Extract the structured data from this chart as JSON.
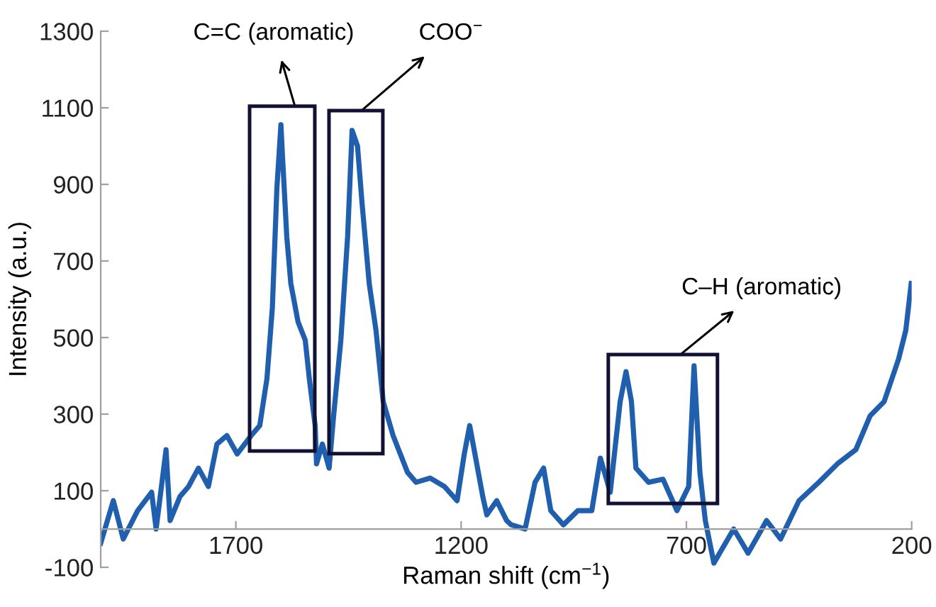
{
  "chart_data": {
    "type": "line",
    "xlabel": "Raman shift (cm$^{−1}$)",
    "ylabel": "Intensity (a.u.)",
    "xlim": [
      2000,
      200
    ],
    "xticks": [
      1700,
      1200,
      700,
      200
    ],
    "ylim": [
      -100,
      1300
    ],
    "yticks": [
      -100,
      100,
      300,
      500,
      700,
      900,
      1100,
      1300
    ],
    "grid": false,
    "marker": "none",
    "line_style": "solid",
    "series": [
      {
        "color": "#1f5fad",
        "x": [
          2000,
          1972,
          1950,
          1918,
          1887,
          1877,
          1855,
          1846,
          1824,
          1805,
          1783,
          1761,
          1742,
          1720,
          1697,
          1666,
          1647,
          1631,
          1619,
          1609,
          1600,
          1597,
          1587,
          1578,
          1562,
          1546,
          1537,
          1524,
          1521,
          1508,
          1493,
          1483,
          1467,
          1452,
          1442,
          1430,
          1420,
          1404,
          1389,
          1373,
          1351,
          1319,
          1300,
          1269,
          1237,
          1209,
          1193,
          1181,
          1152,
          1143,
          1121,
          1099,
          1089,
          1058,
          1036,
          1017,
          1001,
          973,
          941,
          910,
          891,
          869,
          847,
          834,
          822,
          812,
          784,
          752,
          721,
          695,
          683,
          670,
          658,
          639,
          595,
          563,
          522,
          491,
          450,
          406,
          365,
          324,
          292,
          261,
          229,
          213,
          201
        ],
        "values": [
          -37,
          74,
          -26,
          48,
          96,
          0,
          207,
          22,
          85,
          111,
          159,
          111,
          222,
          244,
          196,
          244,
          270,
          393,
          578,
          889,
          1056,
          985,
          763,
          641,
          541,
          493,
          393,
          270,
          170,
          222,
          159,
          296,
          493,
          763,
          1041,
          1000,
          852,
          641,
          519,
          333,
          244,
          148,
          122,
          133,
          111,
          74,
          196,
          270,
          85,
          37,
          74,
          22,
          11,
          0,
          122,
          159,
          48,
          11,
          48,
          48,
          185,
          96,
          333,
          411,
          333,
          159,
          122,
          130,
          48,
          111,
          426,
          148,
          22,
          -89,
          0,
          -63,
          22,
          -26,
          74,
          122,
          170,
          207,
          296,
          333,
          444,
          519,
          641
        ]
      }
    ],
    "annotations": [
      "C=C (aromatic)",
      "COO$^{−}$",
      "C–H (aromatic)"
    ]
  }
}
